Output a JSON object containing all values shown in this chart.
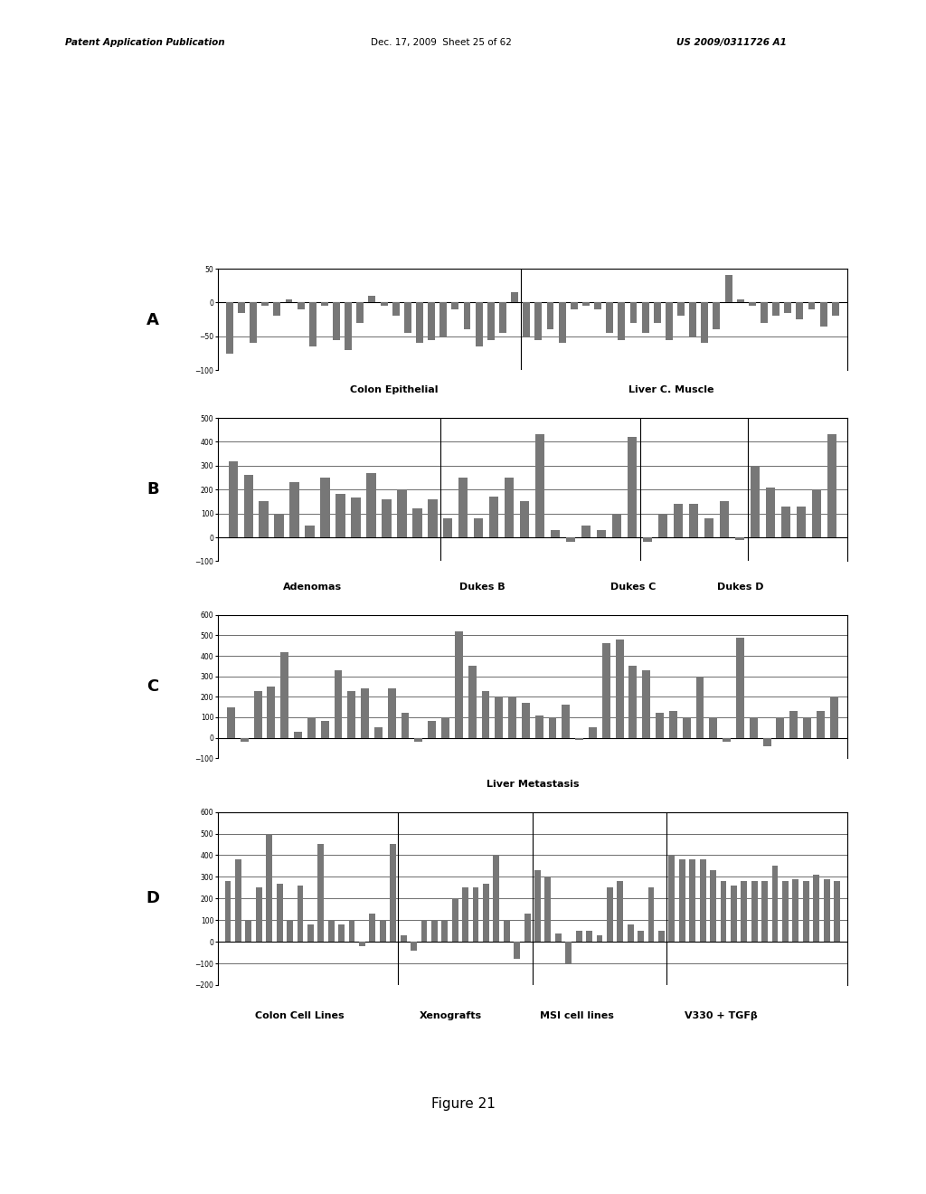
{
  "panel_A": {
    "labels_below": [
      [
        "Colon Epithelial",
        0.28
      ],
      [
        "Liver C. Muscle",
        0.72
      ]
    ],
    "ylim": [
      -100,
      50
    ],
    "yticks": [
      -100,
      -50,
      0,
      50
    ],
    "values": [
      -75,
      -15,
      -60,
      -5,
      -20,
      5,
      -10,
      -65,
      -5,
      -55,
      -70,
      -30,
      10,
      -5,
      -20,
      -45,
      -60,
      -55,
      -50,
      -10,
      -40,
      -65,
      -55,
      -45,
      15,
      -50,
      -55,
      -40,
      -60,
      -10,
      -5,
      -10,
      -45,
      -55,
      -30,
      -45,
      -30,
      -55,
      -20,
      -50,
      -60,
      -40,
      40,
      5,
      -5,
      -30,
      -20,
      -15,
      -25,
      -10,
      -35,
      -20
    ],
    "group_boundaries": [
      25
    ],
    "bar_color": "#777777",
    "bar_width": 0.6
  },
  "panel_B": {
    "labels_below": [
      [
        "Adenomas",
        0.15
      ],
      [
        "Dukes B",
        0.42
      ],
      [
        "Dukes C",
        0.66
      ],
      [
        "Dukes D",
        0.83
      ]
    ],
    "ylim": [
      -100,
      500
    ],
    "yticks": [
      -100,
      0,
      100,
      200,
      300,
      400,
      500
    ],
    "values": [
      320,
      260,
      150,
      100,
      230,
      50,
      250,
      180,
      165,
      270,
      160,
      200,
      120,
      160,
      80,
      250,
      80,
      170,
      250,
      150,
      430,
      30,
      -20,
      50,
      30,
      100,
      420,
      -20,
      100,
      140,
      140,
      80,
      150,
      -10,
      300,
      210,
      130,
      130,
      200,
      430
    ],
    "group_boundaries": [
      14,
      27,
      34
    ],
    "bar_color": "#777777",
    "bar_width": 0.6
  },
  "panel_C": {
    "labels_below": [
      [
        "Liver Metastasis",
        0.5
      ]
    ],
    "ylim": [
      -100,
      600
    ],
    "yticks": [
      -100,
      0,
      100,
      200,
      300,
      400,
      500,
      600
    ],
    "values": [
      150,
      -20,
      230,
      250,
      420,
      30,
      100,
      80,
      330,
      230,
      240,
      50,
      240,
      120,
      -20,
      80,
      100,
      520,
      350,
      230,
      200,
      200,
      170,
      110,
      100,
      160,
      -10,
      50,
      460,
      480,
      350,
      330,
      120,
      130,
      100,
      300,
      100,
      -20,
      490,
      100,
      -40,
      100,
      130,
      100,
      130,
      200
    ],
    "group_boundaries": [],
    "bar_color": "#777777",
    "bar_width": 0.6
  },
  "panel_D": {
    "labels_below": [
      [
        "Colon Cell Lines",
        0.13
      ],
      [
        "Xenografts",
        0.37
      ],
      [
        "MSI cell lines",
        0.57
      ],
      [
        "V330 + TGFβ",
        0.8
      ]
    ],
    "ylim": [
      -200,
      600
    ],
    "yticks": [
      -200,
      -100,
      0,
      100,
      200,
      300,
      400,
      500,
      600
    ],
    "values": [
      280,
      380,
      100,
      250,
      500,
      270,
      100,
      260,
      80,
      450,
      100,
      80,
      100,
      -20,
      130,
      100,
      450,
      30,
      -40,
      100,
      100,
      100,
      200,
      250,
      250,
      270,
      400,
      100,
      -80,
      130,
      330,
      300,
      40,
      -100,
      50,
      50,
      30,
      250,
      280,
      80,
      50,
      250,
      50,
      400,
      380,
      380,
      380,
      330,
      280,
      260,
      280,
      280,
      280,
      350,
      280,
      290,
      280,
      310,
      290,
      280
    ],
    "group_boundaries": [
      17,
      30,
      43
    ],
    "bar_color": "#777777",
    "bar_width": 0.6
  },
  "header_parts": [
    [
      "Patent Application Publication",
      0.07,
      "bold"
    ],
    [
      "Dec. 17, 2009  Sheet 25 of 62",
      0.4,
      "normal"
    ],
    [
      "US 2009/0311726 A1",
      0.73,
      "bold"
    ]
  ],
  "figure_label": "Figure 21",
  "bg_color": "#ffffff",
  "panel_labels": [
    "A",
    "B",
    "C",
    "D"
  ],
  "text_color": "#000000"
}
